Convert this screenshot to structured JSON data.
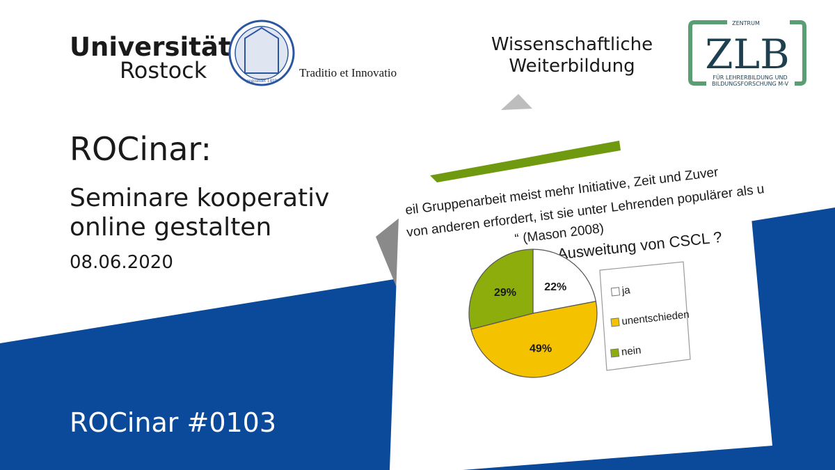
{
  "header": {
    "university": "Universität",
    "city": "Rostock",
    "seal_text": "gegründet 1419",
    "motto": "Traditio et Innovatio",
    "department_line1": "Wissenschaftliche",
    "department_line2": "Weiterbildung",
    "zlb_top": "ZENTRUM",
    "zlb_name": "ZLB",
    "zlb_line1": "FÜR LEHRERBILDUNG UND",
    "zlb_line2": "BILDUNGSFORSCHUNG M-V"
  },
  "slide": {
    "title": "ROCinar:",
    "subtitle_line1": "Seminare kooperativ",
    "subtitle_line2": "online gestalten",
    "date": "08.06.2020",
    "episode": "ROCinar #0103"
  },
  "quote": {
    "line1": "eil Gruppenarbeit meist mehr Initiative, Zeit und Zuver",
    "line2": "von anderen erfordert, ist sie unter Lehrenden populärer als u",
    "line3": "“ (Mason 2008)"
  },
  "chart_data": {
    "type": "pie",
    "title": "Ausweitung von CSCL ?",
    "categories": [
      "ja",
      "unentschieden",
      "nein"
    ],
    "values": [
      22,
      49,
      29
    ],
    "value_labels": [
      "22%",
      "49%",
      "29%"
    ],
    "colors": [
      "#ffffff",
      "#f5c200",
      "#8cad0c"
    ]
  }
}
